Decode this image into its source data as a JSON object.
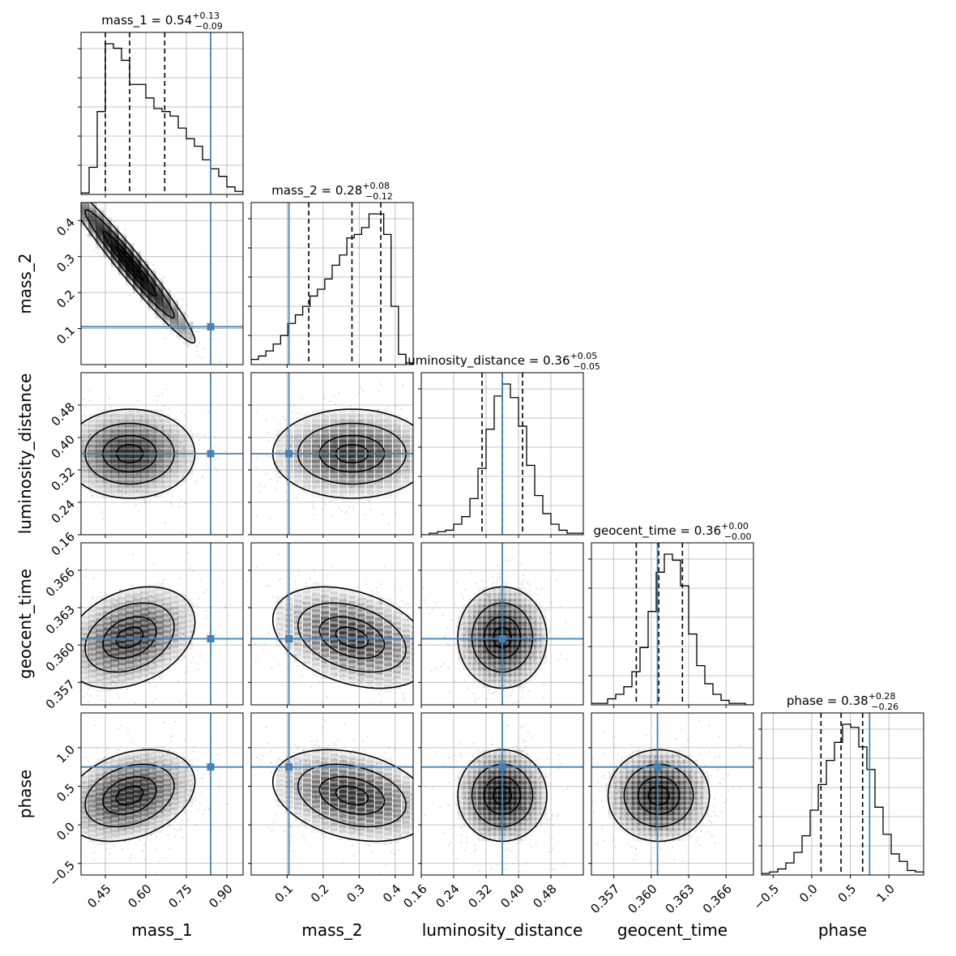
{
  "chart_data": {
    "type": "corner",
    "parameters": [
      "mass_1",
      "mass_2",
      "luminosity_distance",
      "geocent_time",
      "phase"
    ],
    "axis_labels": [
      "mass_1",
      "mass_2",
      "luminosity_distance",
      "geocent_time",
      "phase"
    ],
    "ranges": [
      [
        0.36,
        0.96
      ],
      [
        0.0,
        0.45
      ],
      [
        0.16,
        0.56
      ],
      [
        0.3552,
        0.3682
      ],
      [
        -0.65,
        1.45
      ]
    ],
    "ticks": [
      [
        0.45,
        0.6,
        0.75,
        0.9
      ],
      [
        0.1,
        0.2,
        0.3,
        0.4
      ],
      [
        0.16,
        0.24,
        0.32,
        0.4,
        0.48
      ],
      [
        0.357,
        0.36,
        0.363,
        0.366
      ],
      [
        -0.5,
        0.0,
        0.5,
        1.0
      ]
    ],
    "tick_labels": [
      [
        "0.45",
        "0.60",
        "0.75",
        "0.90"
      ],
      [
        "0.1",
        "0.2",
        "0.3",
        "0.4"
      ],
      [
        "0.16",
        "0.24",
        "0.32",
        "0.40",
        "0.48"
      ],
      [
        "0.357",
        "0.360",
        "0.363",
        "0.366"
      ],
      [
        "−0.5",
        "0.0",
        "0.5",
        "1.0"
      ]
    ],
    "y_tick_labels": [
      null,
      [
        "0.1",
        "0.2",
        "0.3",
        "0.4"
      ],
      [
        "0.16",
        "0.24",
        "0.32",
        "0.40",
        "0.48"
      ],
      [
        "0.357",
        "0.360",
        "0.363",
        "0.366"
      ],
      [
        "−0.5",
        "0.0",
        "0.5",
        "1.0"
      ]
    ],
    "truths": [
      0.84,
      0.105,
      0.36,
      0.3605,
      0.75
    ],
    "titles": [
      {
        "name": "mass_1",
        "value": "0.54",
        "plus": "+0.13",
        "minus": "−0.09"
      },
      {
        "name": "mass_2",
        "value": "0.28",
        "plus": "+0.08",
        "minus": "−0.12"
      },
      {
        "name": "luminosity_distance",
        "value": "0.36",
        "plus": "+0.05",
        "minus": "−0.05"
      },
      {
        "name": "geocent_time",
        "value": "0.36",
        "plus": "+0.00",
        "minus": "−0.00"
      },
      {
        "name": "phase",
        "value": "0.38",
        "plus": "+0.28",
        "minus": "−0.26"
      }
    ],
    "quantiles": [
      [
        0.45,
        0.54,
        0.67
      ],
      [
        0.16,
        0.28,
        0.36
      ],
      [
        0.31,
        0.36,
        0.41
      ],
      [
        0.3588,
        0.3606,
        0.3625
      ],
      [
        0.12,
        0.38,
        0.66
      ]
    ],
    "histograms": [
      {
        "edges_range": [
          0.36,
          0.96
        ],
        "counts": [
          1,
          18,
          55,
          100,
          97,
          89,
          73,
          73,
          64,
          57,
          55,
          52,
          44,
          37,
          32,
          23,
          17,
          12,
          5,
          2
        ]
      },
      {
        "edges_range": [
          0.0,
          0.45
        ],
        "counts": [
          3,
          5,
          8,
          12,
          17,
          24,
          29,
          34,
          40,
          44,
          50,
          58,
          64,
          74,
          76,
          80,
          88,
          88,
          76,
          34,
          6,
          1
        ]
      },
      {
        "edges_range": [
          0.16,
          0.56
        ],
        "counts": [
          0,
          1,
          2,
          3,
          7,
          12,
          24,
          44,
          70,
          92,
          100,
          91,
          72,
          46,
          26,
          14,
          7,
          3,
          1,
          1
        ]
      },
      {
        "edges_range": [
          0.3552,
          0.3682
        ],
        "counts": [
          1,
          1,
          4,
          7,
          12,
          22,
          38,
          62,
          88,
          100,
          96,
          79,
          47,
          26,
          14,
          7,
          3,
          1,
          1,
          0
        ]
      },
      {
        "edges_range": [
          -0.65,
          1.45
        ],
        "counts": [
          1,
          2,
          4,
          8,
          15,
          26,
          43,
          60,
          76,
          88,
          100,
          98,
          85,
          70,
          45,
          27,
          14,
          9,
          3,
          2
        ]
      }
    ],
    "truth_color": "#4682b4",
    "grid": true
  }
}
